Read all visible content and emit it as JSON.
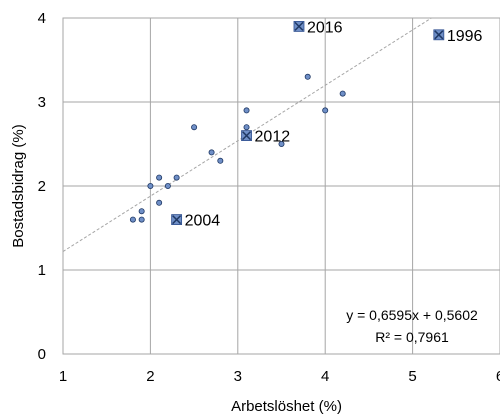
{
  "chart_data": {
    "type": "scatter",
    "xlabel": "Arbetslöshet (%)",
    "ylabel": "Bostadsbidrag (%)",
    "xlim": [
      1,
      6
    ],
    "ylim": [
      0,
      4
    ],
    "x_ticks": [
      "1",
      "2",
      "3",
      "4",
      "5",
      "6"
    ],
    "y_ticks": [
      "0",
      "1",
      "2",
      "3",
      "4"
    ],
    "grid": true,
    "series": [
      {
        "marker": "circle",
        "color": "#6f8fc7",
        "points": [
          {
            "x": 1.8,
            "y": 1.6
          },
          {
            "x": 1.9,
            "y": 1.6
          },
          {
            "x": 1.9,
            "y": 1.7
          },
          {
            "x": 2.0,
            "y": 2.0
          },
          {
            "x": 2.1,
            "y": 2.1
          },
          {
            "x": 2.1,
            "y": 1.8
          },
          {
            "x": 2.2,
            "y": 2.0
          },
          {
            "x": 2.3,
            "y": 2.1
          },
          {
            "x": 2.5,
            "y": 2.7
          },
          {
            "x": 2.7,
            "y": 2.4
          },
          {
            "x": 2.8,
            "y": 2.3
          },
          {
            "x": 3.1,
            "y": 2.9
          },
          {
            "x": 3.1,
            "y": 2.7
          },
          {
            "x": 3.5,
            "y": 2.5
          },
          {
            "x": 3.8,
            "y": 3.3
          },
          {
            "x": 4.0,
            "y": 2.9
          },
          {
            "x": 4.2,
            "y": 3.1
          }
        ]
      },
      {
        "marker": "x-square",
        "color": "#6f8fc7",
        "points": [
          {
            "x": 3.7,
            "y": 3.9,
            "label": "2016"
          },
          {
            "x": 5.3,
            "y": 3.8,
            "label": "1996"
          },
          {
            "x": 3.1,
            "y": 2.6,
            "label": "2012"
          },
          {
            "x": 2.3,
            "y": 1.6,
            "label": "2004"
          }
        ]
      }
    ],
    "trendline": {
      "type": "linear",
      "slope": 0.6595,
      "intercept": 0.5602,
      "style": "dotted",
      "color": "#a6a6a6",
      "equation_text": "y = 0,6595x + 0,5602",
      "r2_text": "R² = 0,7961"
    }
  }
}
